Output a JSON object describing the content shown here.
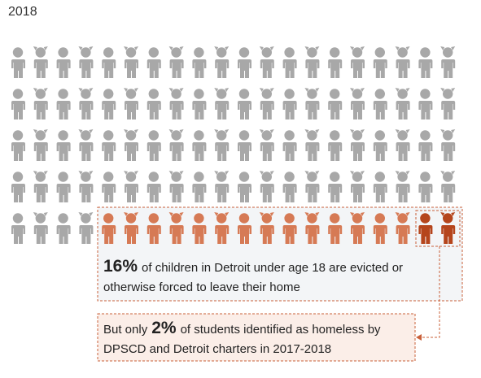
{
  "chart_data": {
    "type": "pictograph",
    "title": "2018",
    "total": 100,
    "values": [
      16,
      2
    ],
    "value_labels": [
      "16%",
      "2%"
    ],
    "colors": [
      "#d67a55",
      "#b5451c"
    ],
    "base_color": "#a8a8a8",
    "annotations": [
      {
        "text": "of children in Detroit under age 18 are evicted or otherwise forced to leave their home"
      },
      {
        "prefix": "But only",
        "text": "of students identified as homeless by DPSCD and Detroit charters in 2017-2018"
      }
    ]
  }
}
